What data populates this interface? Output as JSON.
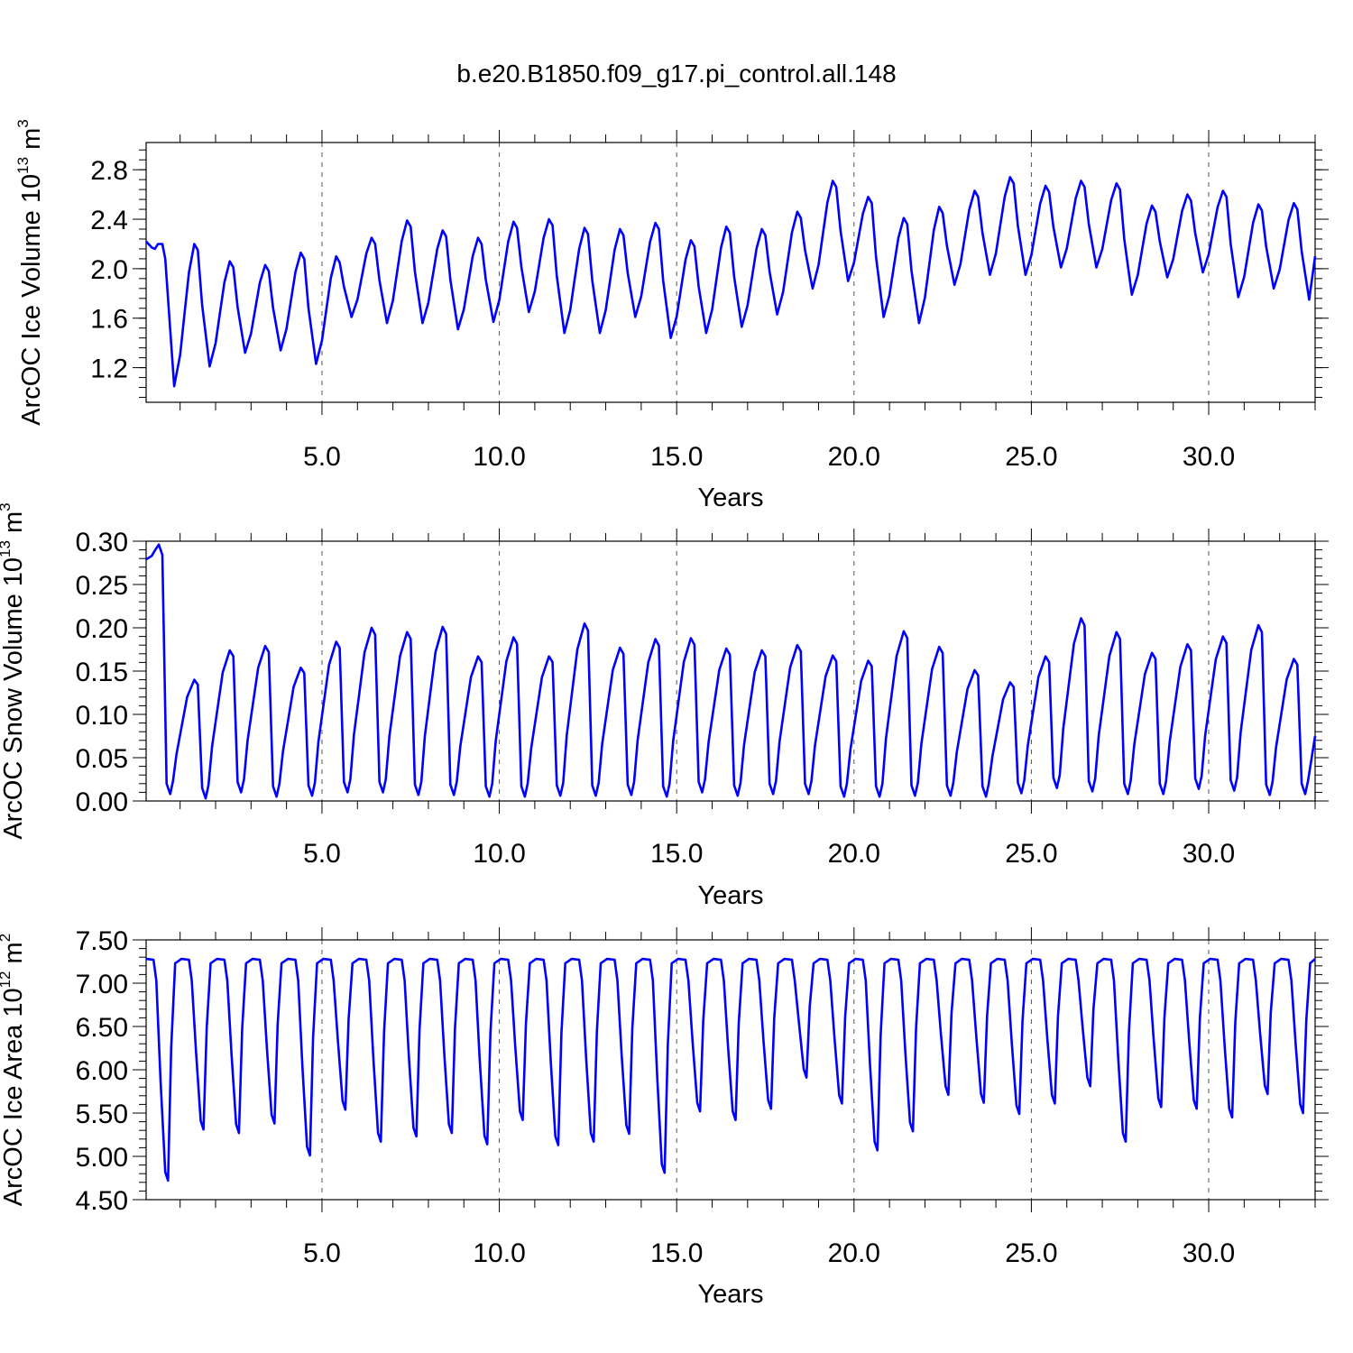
{
  "title": "b.e20.B1850.f09_g17.pi_control.all.148",
  "line_color": "#0000ff",
  "chart_data": [
    {
      "type": "line",
      "ylabel": "ArcOC Ice Volume 10",
      "ylabel_exp": "13",
      "ylabel_unit": " m",
      "ylabel_unit_exp": "3",
      "xlabel": "Years",
      "xlim": [
        0.042,
        33.0
      ],
      "ylim": [
        0.92,
        3.02
      ],
      "x_ticks": [
        5,
        10,
        15,
        20,
        25,
        30
      ],
      "x_tick_labels": [
        "5.0",
        "10.0",
        "15.0",
        "20.0",
        "25.0",
        "30.0"
      ],
      "y_ticks": [
        1.2,
        1.6,
        2.0,
        2.4,
        2.8
      ],
      "y_tick_labels": [
        "1.2",
        "1.6",
        "2.0",
        "2.4",
        "2.8"
      ],
      "grid": "vertical dashed at labeled x ticks",
      "series": [
        {
          "kind": "seasonal",
          "summer_min": [
            1.05,
            1.21,
            1.32,
            1.34,
            1.23,
            1.61,
            1.56,
            1.56,
            1.51,
            1.57,
            1.65,
            1.48,
            1.48,
            1.61,
            1.44,
            1.48,
            1.53,
            1.63,
            1.84,
            1.9,
            1.61,
            1.56,
            1.87,
            1.95,
            1.95,
            2.01,
            2.01,
            1.79,
            1.93,
            1.97,
            1.77,
            1.84,
            1.75
          ],
          "spring_max": [
            2.2,
            2.06,
            2.03,
            2.13,
            2.1,
            2.25,
            2.39,
            2.31,
            2.25,
            2.38,
            2.4,
            2.33,
            2.32,
            2.37,
            2.23,
            2.34,
            2.32,
            2.46,
            2.71,
            2.58,
            2.41,
            2.5,
            2.63,
            2.74,
            2.67,
            2.71,
            2.69,
            2.51,
            2.6,
            2.63,
            2.52,
            2.53
          ],
          "start_value": 2.22,
          "end_value": 2.1
        }
      ]
    },
    {
      "type": "line",
      "ylabel": "ArcOC Snow Volume 10",
      "ylabel_exp": "13",
      "ylabel_unit": " m",
      "ylabel_unit_exp": "3",
      "xlabel": "Years",
      "xlim": [
        0.042,
        33.0
      ],
      "ylim": [
        0.0,
        0.3
      ],
      "x_ticks": [
        5,
        10,
        15,
        20,
        25,
        30
      ],
      "x_tick_labels": [
        "5.0",
        "10.0",
        "15.0",
        "20.0",
        "25.0",
        "30.0"
      ],
      "y_ticks": [
        0.0,
        0.05,
        0.1,
        0.15,
        0.2,
        0.25,
        0.3
      ],
      "y_tick_labels": [
        "0.00",
        "0.05",
        "0.10",
        "0.15",
        "0.20",
        "0.25",
        "0.30"
      ],
      "grid": "vertical dashed at labeled x ticks",
      "series": [
        {
          "kind": "sawtooth",
          "spring_max": [
            0.296,
            0.14,
            0.174,
            0.179,
            0.154,
            0.184,
            0.2,
            0.195,
            0.201,
            0.167,
            0.189,
            0.167,
            0.205,
            0.177,
            0.187,
            0.188,
            0.176,
            0.174,
            0.18,
            0.168,
            0.162,
            0.196,
            0.178,
            0.151,
            0.137,
            0.167,
            0.211,
            0.195,
            0.171,
            0.181,
            0.19,
            0.203,
            0.164
          ],
          "summer_min": [
            0.008,
            0.003,
            0.01,
            0.005,
            0.006,
            0.01,
            0.01,
            0.007,
            0.007,
            0.005,
            0.005,
            0.006,
            0.006,
            0.007,
            0.005,
            0.01,
            0.006,
            0.008,
            0.008,
            0.005,
            0.005,
            0.006,
            0.006,
            0.005,
            0.009,
            0.015,
            0.011,
            0.008,
            0.008,
            0.014,
            0.012,
            0.007,
            0.008
          ],
          "start_value": 0.279,
          "end_value": 0.075
        }
      ]
    },
    {
      "type": "line",
      "ylabel": "ArcOC Ice Area 10",
      "ylabel_exp": "12",
      "ylabel_unit": " m",
      "ylabel_unit_exp": "2",
      "xlabel": "Years",
      "xlim": [
        0.042,
        33.0
      ],
      "ylim": [
        4.5,
        7.5
      ],
      "x_ticks": [
        5,
        10,
        15,
        20,
        25,
        30
      ],
      "x_tick_labels": [
        "5.0",
        "10.0",
        "15.0",
        "20.0",
        "25.0",
        "30.0"
      ],
      "y_ticks": [
        4.5,
        5.0,
        5.5,
        6.0,
        6.5,
        7.0,
        7.5
      ],
      "y_tick_labels": [
        "4.50",
        "5.00",
        "5.50",
        "6.00",
        "6.50",
        "7.00",
        "7.50"
      ],
      "grid": "vertical dashed at labeled x ticks",
      "series": [
        {
          "kind": "plateau",
          "winter_max": 7.28,
          "summer_min": [
            4.72,
            5.31,
            5.27,
            5.38,
            5.01,
            5.54,
            5.17,
            5.23,
            5.27,
            5.14,
            5.42,
            5.13,
            5.17,
            5.26,
            4.81,
            5.52,
            5.42,
            5.55,
            5.91,
            5.61,
            5.07,
            5.29,
            5.71,
            5.62,
            5.49,
            5.61,
            5.81,
            5.17,
            5.57,
            5.55,
            5.45,
            5.72,
            5.5
          ],
          "start_value": 7.28,
          "end_value": 7.28
        }
      ]
    }
  ]
}
